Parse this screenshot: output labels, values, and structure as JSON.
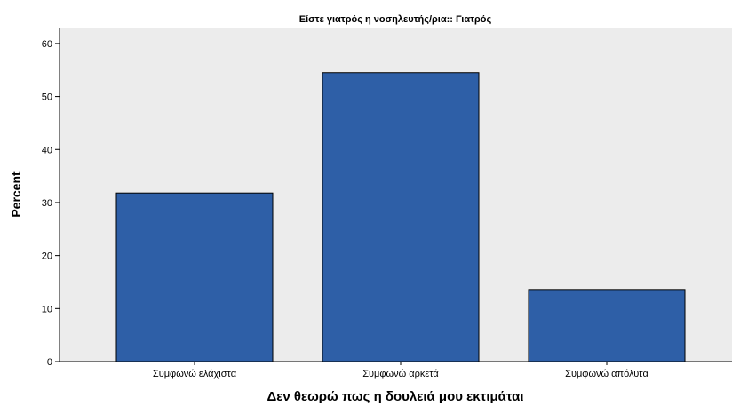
{
  "chart_data": {
    "type": "bar",
    "title": "Είστε γιατρός η νοσηλευτής/ρια:: Γιατρός",
    "xlabel": "Δεν θεωρώ πως η δουλειά μου εκτιμάται",
    "ylabel": "Percent",
    "categories": [
      "Συμφωνώ ελάχιστα",
      "Συμφωνώ αρκετά",
      "Συμφωνώ απόλυτα"
    ],
    "values": [
      31.8,
      54.5,
      13.6
    ],
    "ylim": [
      0,
      63
    ],
    "yticks": [
      0,
      10,
      20,
      30,
      40,
      50,
      60
    ],
    "grid": false,
    "bar_color": "#2e5fa7",
    "bar_edge_color": "#000000",
    "plot_background": "#ececec"
  }
}
